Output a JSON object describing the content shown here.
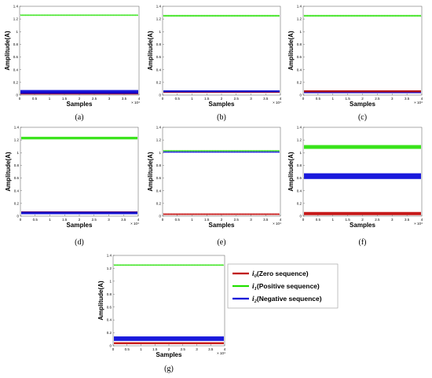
{
  "figure": {
    "legend": [
      {
        "symbol": "i",
        "subscript": "0",
        "label": "(Zero sequence)",
        "color": "#c00000"
      },
      {
        "symbol": "i",
        "subscript": "1",
        "label": "(Positive sequence)",
        "color": "#22e000"
      },
      {
        "symbol": "i",
        "subscript": "2",
        "label": "(Negative sequence)",
        "color": "#0000d8"
      }
    ]
  },
  "chart_data": [
    {
      "type": "line",
      "caption": "(a)",
      "xlabel": "Samples",
      "ylabel": "Amplitude(A)",
      "xlim": [
        0,
        4
      ],
      "ylim": [
        0,
        1.4
      ],
      "x_exponent": "× 10⁴",
      "xticks": [
        "0",
        "0.5",
        "1",
        "1.5",
        "2",
        "2.5",
        "3",
        "3.5",
        "4"
      ],
      "yticks": [
        "0",
        "0.2",
        "0.4",
        "0.6",
        "0.8",
        "1",
        "1.2",
        "1.4"
      ],
      "series": [
        {
          "name": "i0 (Zero sequence)",
          "color": "#c00000",
          "center": 0.03,
          "band": 0.04
        },
        {
          "name": "i1 (Positive sequence)",
          "color": "#22e000",
          "center": 1.26,
          "band": 0.015
        },
        {
          "name": "i2 (Negative sequence)",
          "color": "#0000d8",
          "center": 0.05,
          "band": 0.06
        }
      ]
    },
    {
      "type": "line",
      "caption": "(b)",
      "xlabel": "Samples",
      "ylabel": "Amplitude(A)",
      "xlim": [
        0,
        4
      ],
      "ylim": [
        0,
        1.4
      ],
      "x_exponent": "× 10⁴",
      "xticks": [
        "0",
        "0.5",
        "1",
        "1.5",
        "2",
        "2.5",
        "3",
        "3.5",
        "4"
      ],
      "yticks": [
        "0",
        "0.2",
        "0.4",
        "0.6",
        "0.8",
        "1",
        "1.2",
        "1.4"
      ],
      "series": [
        {
          "name": "i1 (Positive sequence)",
          "color": "#22e000",
          "center": 1.25,
          "band": 0.02
        },
        {
          "name": "i0 (Zero sequence)",
          "color": "#c00000",
          "center": 0.05,
          "band": 0.03
        },
        {
          "name": "i2 (Negative sequence)",
          "color": "#0000d8",
          "center": 0.06,
          "band": 0.03
        }
      ]
    },
    {
      "type": "line",
      "caption": "(c)",
      "xlabel": "Samples",
      "ylabel": "Amplitude(A)",
      "xlim": [
        0,
        4
      ],
      "ylim": [
        0,
        1.4
      ],
      "x_exponent": "× 10⁴",
      "xticks": [
        "0",
        "0.5",
        "1",
        "1.5",
        "2",
        "2.5",
        "3",
        "3.5",
        "4"
      ],
      "yticks": [
        "0",
        "0.2",
        "0.4",
        "0.6",
        "0.8",
        "1",
        "1.2",
        "1.4"
      ],
      "series": [
        {
          "name": "i1 (Positive sequence)",
          "color": "#22e000",
          "center": 1.25,
          "band": 0.02
        },
        {
          "name": "i2 (Negative sequence)",
          "color": "#0000d8",
          "center": 0.05,
          "band": 0.04
        },
        {
          "name": "i0 (Zero sequence)",
          "color": "#c00000",
          "center": 0.06,
          "band": 0.03
        }
      ]
    },
    {
      "type": "line",
      "caption": "(d)",
      "xlabel": "Samples",
      "ylabel": "Amplitude(A)",
      "xlim": [
        0,
        4
      ],
      "ylim": [
        0,
        1.4
      ],
      "x_exponent": "× 10⁴",
      "xticks": [
        "0",
        "0.5",
        "1",
        "1.5",
        "2",
        "2.5",
        "3",
        "3.5",
        "4"
      ],
      "yticks": [
        "0",
        "0.2",
        "0.4",
        "0.6",
        "0.8",
        "1",
        "1.2",
        "1.4"
      ],
      "series": [
        {
          "name": "i1 (Positive sequence)",
          "color": "#22e000",
          "center": 1.23,
          "band": 0.04
        },
        {
          "name": "i0 (Zero sequence)",
          "color": "#c00000",
          "center": 0.06,
          "band": 0.03
        },
        {
          "name": "i2 (Negative sequence)",
          "color": "#0000d8",
          "center": 0.05,
          "band": 0.04
        }
      ]
    },
    {
      "type": "line",
      "caption": "(e)",
      "xlabel": "Samples",
      "ylabel": "Amplitude(A)",
      "xlim": [
        0,
        4
      ],
      "ylim": [
        0,
        1.4
      ],
      "x_exponent": "× 10⁴",
      "xticks": [
        "0",
        "0.5",
        "1",
        "1.5",
        "2",
        "2.5",
        "3",
        "3.5",
        "4"
      ],
      "yticks": [
        "0",
        "0.2",
        "0.4",
        "0.6",
        "0.8",
        "1",
        "1.2",
        "1.4"
      ],
      "series": [
        {
          "name": "i1 (Positive sequence)",
          "color": "#22e000",
          "center": 1.03,
          "band": 0.015
        },
        {
          "name": "i2 (Negative sequence)",
          "color": "#0000d8",
          "center": 1.01,
          "band": 0.015
        },
        {
          "name": "i0 (Zero sequence)",
          "color": "#c00000",
          "center": 0.03,
          "band": 0.02
        }
      ]
    },
    {
      "type": "line",
      "caption": "(f)",
      "xlabel": "Samples",
      "ylabel": "Amplitude(A)",
      "xlim": [
        0,
        4
      ],
      "ylim": [
        0,
        1.4
      ],
      "x_exponent": "× 10⁴",
      "xticks": [
        "0",
        "0.5",
        "1",
        "1.5",
        "2",
        "2.5",
        "3",
        "3.5",
        "4"
      ],
      "yticks": [
        "0",
        "0.2",
        "0.4",
        "0.6",
        "0.8",
        "1",
        "1.2",
        "1.4"
      ],
      "series": [
        {
          "name": "i1 (Positive sequence)",
          "color": "#22e000",
          "center": 1.09,
          "band": 0.06
        },
        {
          "name": "i2 (Negative sequence)",
          "color": "#0000d8",
          "center": 0.63,
          "band": 0.09
        },
        {
          "name": "i0 (Zero sequence)",
          "color": "#c00000",
          "center": 0.04,
          "band": 0.05
        }
      ]
    },
    {
      "type": "line",
      "caption": "(g)",
      "xlabel": "Samples",
      "ylabel": "Amplitude(A)",
      "xlim": [
        0,
        4
      ],
      "ylim": [
        0,
        1.4
      ],
      "x_exponent": "× 10⁴",
      "xticks": [
        "0",
        "0.5",
        "1",
        "1.5",
        "2",
        "2.5",
        "3",
        "3.5",
        "4"
      ],
      "yticks": [
        "0",
        "0.2",
        "0.4",
        "0.6",
        "0.8",
        "1",
        "1.2",
        "1.4"
      ],
      "series": [
        {
          "name": "i1 (Positive sequence)",
          "color": "#22e000",
          "center": 1.25,
          "band": 0.015
        },
        {
          "name": "i2 (Negative sequence)",
          "color": "#0000d8",
          "center": 0.11,
          "band": 0.07
        },
        {
          "name": "i0 (Zero sequence)",
          "color": "#c00000",
          "center": 0.04,
          "band": 0.03
        }
      ]
    }
  ]
}
